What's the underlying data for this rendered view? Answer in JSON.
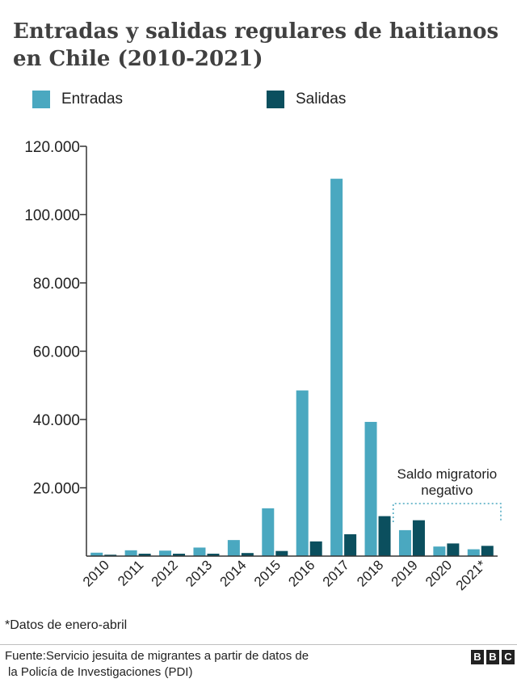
{
  "title": "Entradas y salidas regulares de haitianos en Chile (2010-2021)",
  "footnote": "*Datos de enero-abril",
  "source_lines": [
    "Fuente:Servicio jesuita de migrantes a partir de datos de",
    "la Policía de Investigaciones (PDI)"
  ],
  "logo": [
    "B",
    "B",
    "C"
  ],
  "colors": {
    "entradas": "#4aa8c0",
    "salidas": "#0b4f5e",
    "annotation": "#4aa8c0",
    "axis": "#333333"
  },
  "chart_data": {
    "type": "bar",
    "categories": [
      "2010",
      "2011",
      "2012",
      "2013",
      "2014",
      "2015",
      "2016",
      "2017",
      "2018",
      "2019",
      "2020",
      "2021*"
    ],
    "series": [
      {
        "name": "Entradas",
        "values": [
          1000,
          1700,
          1600,
          2500,
          4700,
          14000,
          48500,
          110500,
          39300,
          7600,
          2800,
          2000
        ]
      },
      {
        "name": "Salidas",
        "values": [
          400,
          700,
          700,
          700,
          900,
          1500,
          4300,
          6400,
          11700,
          10500,
          3700,
          3000
        ]
      }
    ],
    "ylim": [
      0,
      120000
    ],
    "yticks": [
      20000,
      40000,
      60000,
      80000,
      100000,
      120000
    ],
    "ytick_labels": [
      "20.000",
      "40.000",
      "60.000",
      "80.000",
      "100.000",
      "120.000"
    ],
    "legend_position": "top",
    "grid": false,
    "annotation": {
      "text_lines": [
        "Saldo migratorio",
        "negativo"
      ],
      "from_category": "2019",
      "to_category": "2021*"
    }
  }
}
